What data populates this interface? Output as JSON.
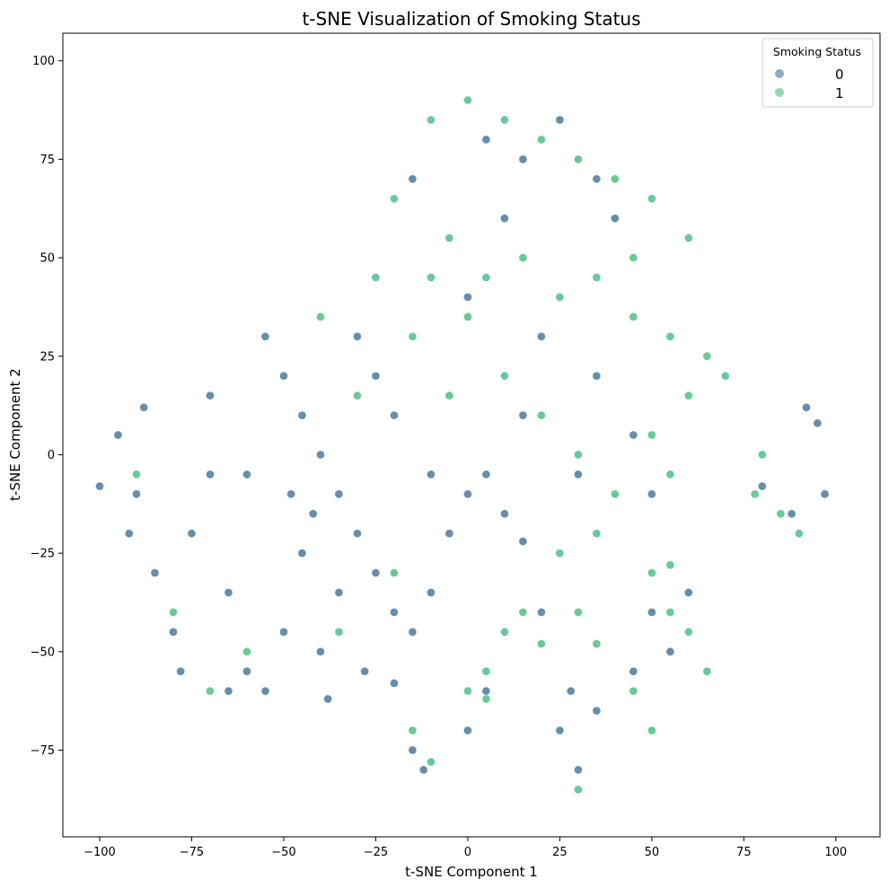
{
  "chart_data": {
    "type": "scatter",
    "title": "t-SNE Visualization of Smoking Status",
    "xlabel": "t-SNE Component 1",
    "ylabel": "t-SNE Component 2",
    "xlim": [
      -110,
      112
    ],
    "ylim": [
      -97,
      107
    ],
    "xticks": [
      -100,
      -75,
      -50,
      -25,
      0,
      25,
      50,
      75,
      100
    ],
    "yticks": [
      -75,
      -50,
      -25,
      0,
      25,
      50,
      75,
      100
    ],
    "xtick_labels": [
      "−100",
      "−75",
      "−50",
      "−25",
      "0",
      "25",
      "50",
      "75",
      "100"
    ],
    "ytick_labels": [
      "−75",
      "−50",
      "−25",
      "0",
      "25",
      "50",
      "75",
      "100"
    ],
    "grid": false,
    "legend": {
      "title": "Smoking Status",
      "placement": "top-right",
      "entries": [
        {
          "label": "0",
          "color": "#31688e"
        },
        {
          "label": "1",
          "color": "#35b779"
        }
      ]
    },
    "series": [
      {
        "name": "0",
        "color": "#31688e",
        "points": [
          [
            -95,
            5
          ],
          [
            -90,
            -10
          ],
          [
            -85,
            -30
          ],
          [
            -80,
            -45
          ],
          [
            -75,
            -20
          ],
          [
            -70,
            -5
          ],
          [
            -65,
            -35
          ],
          [
            -60,
            -55
          ],
          [
            -55,
            -60
          ],
          [
            -50,
            -45
          ],
          [
            -45,
            -25
          ],
          [
            -40,
            -50
          ],
          [
            -38,
            -62
          ],
          [
            -55,
            30
          ],
          [
            -50,
            20
          ],
          [
            -45,
            10
          ],
          [
            -40,
            0
          ],
          [
            -35,
            -10
          ],
          [
            -30,
            -20
          ],
          [
            -25,
            -30
          ],
          [
            -20,
            -40
          ],
          [
            -15,
            -45
          ],
          [
            -10,
            -35
          ],
          [
            -5,
            -20
          ],
          [
            0,
            -10
          ],
          [
            5,
            -5
          ],
          [
            10,
            -15
          ],
          [
            15,
            -22
          ],
          [
            -30,
            30
          ],
          [
            -25,
            20
          ],
          [
            -20,
            10
          ],
          [
            -10,
            -5
          ],
          [
            5,
            80
          ],
          [
            15,
            75
          ],
          [
            25,
            85
          ],
          [
            35,
            70
          ],
          [
            40,
            60
          ],
          [
            10,
            60
          ],
          [
            -15,
            70
          ],
          [
            0,
            40
          ],
          [
            20,
            30
          ],
          [
            35,
            20
          ],
          [
            45,
            5
          ],
          [
            50,
            -10
          ],
          [
            30,
            -5
          ],
          [
            15,
            10
          ],
          [
            92,
            12
          ],
          [
            95,
            8
          ],
          [
            88,
            -15
          ],
          [
            80,
            -8
          ],
          [
            97,
            -10
          ],
          [
            25,
            -70
          ],
          [
            30,
            -80
          ],
          [
            35,
            -65
          ],
          [
            28,
            -60
          ],
          [
            -15,
            -75
          ],
          [
            -12,
            -80
          ],
          [
            0,
            -70
          ],
          [
            5,
            -60
          ],
          [
            50,
            -40
          ],
          [
            55,
            -50
          ],
          [
            60,
            -35
          ],
          [
            45,
            -55
          ],
          [
            20,
            -40
          ],
          [
            -100,
            -8
          ],
          [
            -92,
            -20
          ],
          [
            -88,
            12
          ],
          [
            -70,
            15
          ],
          [
            -60,
            -5
          ],
          [
            -48,
            -10
          ],
          [
            -35,
            -35
          ],
          [
            -42,
            -15
          ],
          [
            -65,
            -60
          ],
          [
            -78,
            -55
          ],
          [
            -28,
            -55
          ],
          [
            -20,
            -58
          ]
        ]
      },
      {
        "name": "1",
        "color": "#35b779",
        "points": [
          [
            -10,
            85
          ],
          [
            0,
            90
          ],
          [
            10,
            85
          ],
          [
            20,
            80
          ],
          [
            30,
            75
          ],
          [
            40,
            70
          ],
          [
            50,
            65
          ],
          [
            60,
            55
          ],
          [
            -20,
            65
          ],
          [
            -5,
            55
          ],
          [
            -10,
            45
          ],
          [
            0,
            35
          ],
          [
            10,
            20
          ],
          [
            20,
            10
          ],
          [
            30,
            0
          ],
          [
            40,
            -10
          ],
          [
            50,
            5
          ],
          [
            60,
            15
          ],
          [
            65,
            25
          ],
          [
            70,
            20
          ],
          [
            55,
            -5
          ],
          [
            35,
            -20
          ],
          [
            25,
            -25
          ],
          [
            5,
            45
          ],
          [
            15,
            50
          ],
          [
            25,
            40
          ],
          [
            35,
            45
          ],
          [
            45,
            35
          ],
          [
            55,
            30
          ],
          [
            -15,
            30
          ],
          [
            -5,
            15
          ],
          [
            45,
            50
          ],
          [
            50,
            -30
          ],
          [
            55,
            -40
          ],
          [
            60,
            -45
          ],
          [
            45,
            -60
          ],
          [
            65,
            -55
          ],
          [
            50,
            -70
          ],
          [
            55,
            -28
          ],
          [
            10,
            -45
          ],
          [
            15,
            -40
          ],
          [
            20,
            -48
          ],
          [
            5,
            -55
          ],
          [
            0,
            -60
          ],
          [
            5,
            -62
          ],
          [
            80,
            0
          ],
          [
            85,
            -15
          ],
          [
            78,
            -10
          ],
          [
            90,
            -20
          ],
          [
            -60,
            -50
          ],
          [
            -80,
            -40
          ],
          [
            -90,
            -5
          ],
          [
            -70,
            -60
          ],
          [
            -40,
            35
          ],
          [
            -25,
            45
          ],
          [
            -30,
            15
          ],
          [
            -20,
            -30
          ],
          [
            -35,
            -45
          ],
          [
            30,
            -40
          ],
          [
            35,
            -48
          ],
          [
            30,
            -85
          ],
          [
            -15,
            -70
          ],
          [
            -10,
            -78
          ]
        ]
      }
    ]
  }
}
